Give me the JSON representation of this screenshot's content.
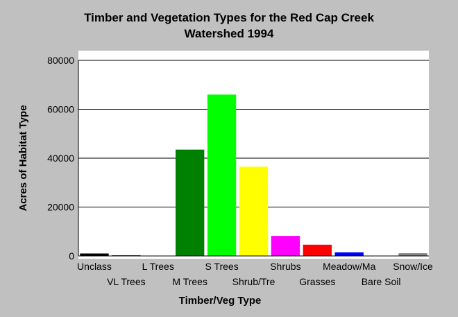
{
  "chart_data": {
    "type": "bar",
    "title": [
      "Timber and Vegetation Types for the Red Cap Creek",
      "Watershed 1994"
    ],
    "xlabel": "Timber/Veg Type",
    "ylabel": "Acres of Habitat Type",
    "ylim": [
      0,
      80000
    ],
    "yticks": [
      "0",
      "20000",
      "40000",
      "60000",
      "80000"
    ],
    "grid": true,
    "categories": [
      "Unclass",
      "VL Trees",
      "L Trees",
      "M Trees",
      "S Trees",
      "Shrub/Tre",
      "Shrubs",
      "Grasses",
      "Meadow/Ma",
      "Bare Soil",
      "Snow/Ice"
    ],
    "values": [
      1000,
      300,
      0,
      43500,
      66000,
      36500,
      8200,
      4600,
      1500,
      0,
      1100
    ],
    "colors": [
      "#000000",
      "#800080",
      "#000080",
      "#008000",
      "#00ff00",
      "#ffff00",
      "#ff00ff",
      "#ff0000",
      "#0000ff",
      "#008080",
      "#808080"
    ]
  }
}
